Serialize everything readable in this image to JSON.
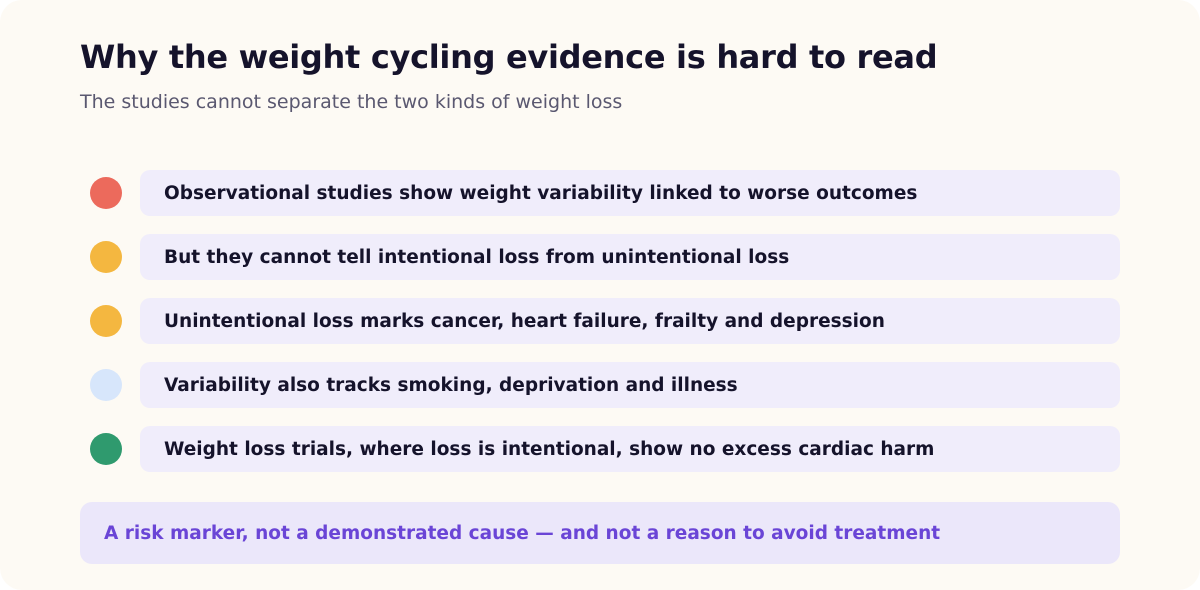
{
  "title": "Why the weight cycling evidence is hard to read",
  "subtitle": "The studies cannot separate the two kinds of weight loss",
  "points": [
    {
      "text": "Observational studies show weight variability linked to worse outcomes",
      "color": "#ec6a5c"
    },
    {
      "text": "But they cannot tell intentional loss from unintentional loss",
      "color": "#f4b740"
    },
    {
      "text": "Unintentional loss marks cancer, heart failure, frailty and depression",
      "color": "#f4b740"
    },
    {
      "text": "Variability also tracks smoking, deprivation and illness",
      "color": "#d7e6fb"
    },
    {
      "text": "Weight loss trials, where loss is intentional, show no excess cardiac harm",
      "color": "#2f9a6e"
    }
  ],
  "conclusion": "A risk marker, not a demonstrated cause — and not a reason to avoid treatment"
}
